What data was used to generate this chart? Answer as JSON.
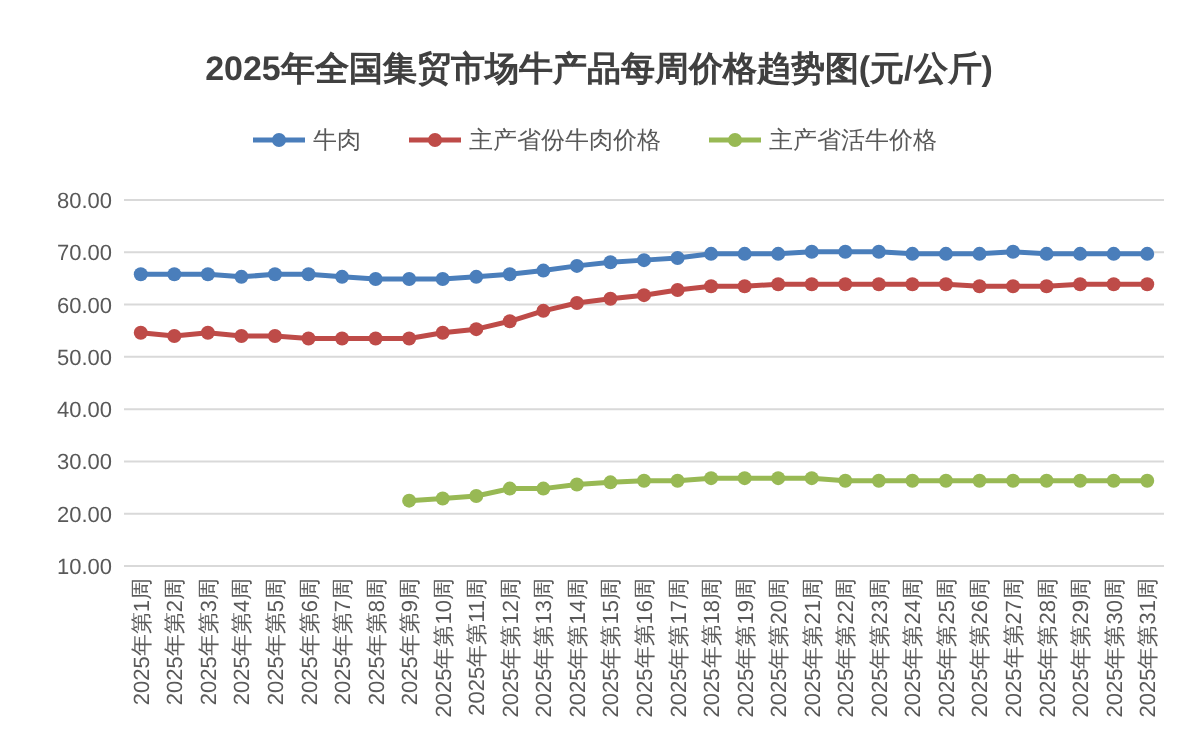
{
  "chart_data": {
    "type": "line",
    "title": "2025年全国集贸市场牛产品每周价格趋势图(元/公斤)",
    "categories": [
      "2025年第1周",
      "2025年第2周",
      "2025年第3周",
      "2025年第4周",
      "2025年第5周",
      "2025年第6周",
      "2025年第7周",
      "2025年第8周",
      "2025年第9周",
      "2025年第10周",
      "2025年第11周",
      "2025年第12周",
      "2025年第13周",
      "2025年第14周",
      "2025年第15周",
      "2025年第16周",
      "2025年第17周",
      "2025年第18周",
      "2025年第19周",
      "2025年第20周",
      "2025年第21周",
      "2025年第22周",
      "2025年第23周",
      "2025年第24周",
      "2025年第25周",
      "2025年第26周",
      "2025年第27周",
      "2025年第28周",
      "2025年第29周",
      "2025年第30周",
      "2025年第31周"
    ],
    "series": [
      {
        "name": "牛肉",
        "color": "#4a7ebb",
        "values": [
          65.8,
          65.8,
          65.8,
          65.3,
          65.8,
          65.8,
          65.3,
          64.9,
          64.9,
          64.9,
          65.3,
          65.8,
          66.5,
          67.4,
          68.1,
          68.5,
          68.9,
          69.7,
          69.7,
          69.7,
          70.1,
          70.1,
          70.1,
          69.7,
          69.7,
          69.7,
          70.1,
          69.7,
          69.7,
          69.7,
          69.7
        ]
      },
      {
        "name": "主产省份牛肉价格",
        "color": "#be4b48",
        "values": [
          54.6,
          54.0,
          54.6,
          54.0,
          54.0,
          53.5,
          53.5,
          53.5,
          53.5,
          54.6,
          55.3,
          56.8,
          58.8,
          60.3,
          61.1,
          61.8,
          62.8,
          63.5,
          63.5,
          63.9,
          63.9,
          63.9,
          63.9,
          63.9,
          63.9,
          63.5,
          63.5,
          63.5,
          63.9,
          63.9,
          63.9
        ]
      },
      {
        "name": "主产省活牛价格",
        "color": "#98b954",
        "values": [
          null,
          null,
          null,
          null,
          null,
          null,
          null,
          null,
          22.5,
          22.9,
          23.4,
          24.8,
          24.8,
          25.6,
          26.0,
          26.3,
          26.3,
          26.8,
          26.8,
          26.8,
          26.8,
          26.3,
          26.3,
          26.3,
          26.3,
          26.3,
          26.3,
          26.3,
          26.3,
          26.3,
          26.3
        ]
      }
    ],
    "ylim": [
      10,
      80
    ],
    "yticks": [
      {
        "value": 10,
        "label": "10.00"
      },
      {
        "value": 20,
        "label": "20.00"
      },
      {
        "value": 30,
        "label": "30.00"
      },
      {
        "value": 40,
        "label": "40.00"
      },
      {
        "value": 50,
        "label": "50.00"
      },
      {
        "value": 60,
        "label": "60.00"
      },
      {
        "value": 70,
        "label": "70.00"
      },
      {
        "value": 80,
        "label": "80.00"
      }
    ],
    "grid": "y",
    "legend": "top",
    "marker": "circle",
    "line_style": "solid"
  }
}
